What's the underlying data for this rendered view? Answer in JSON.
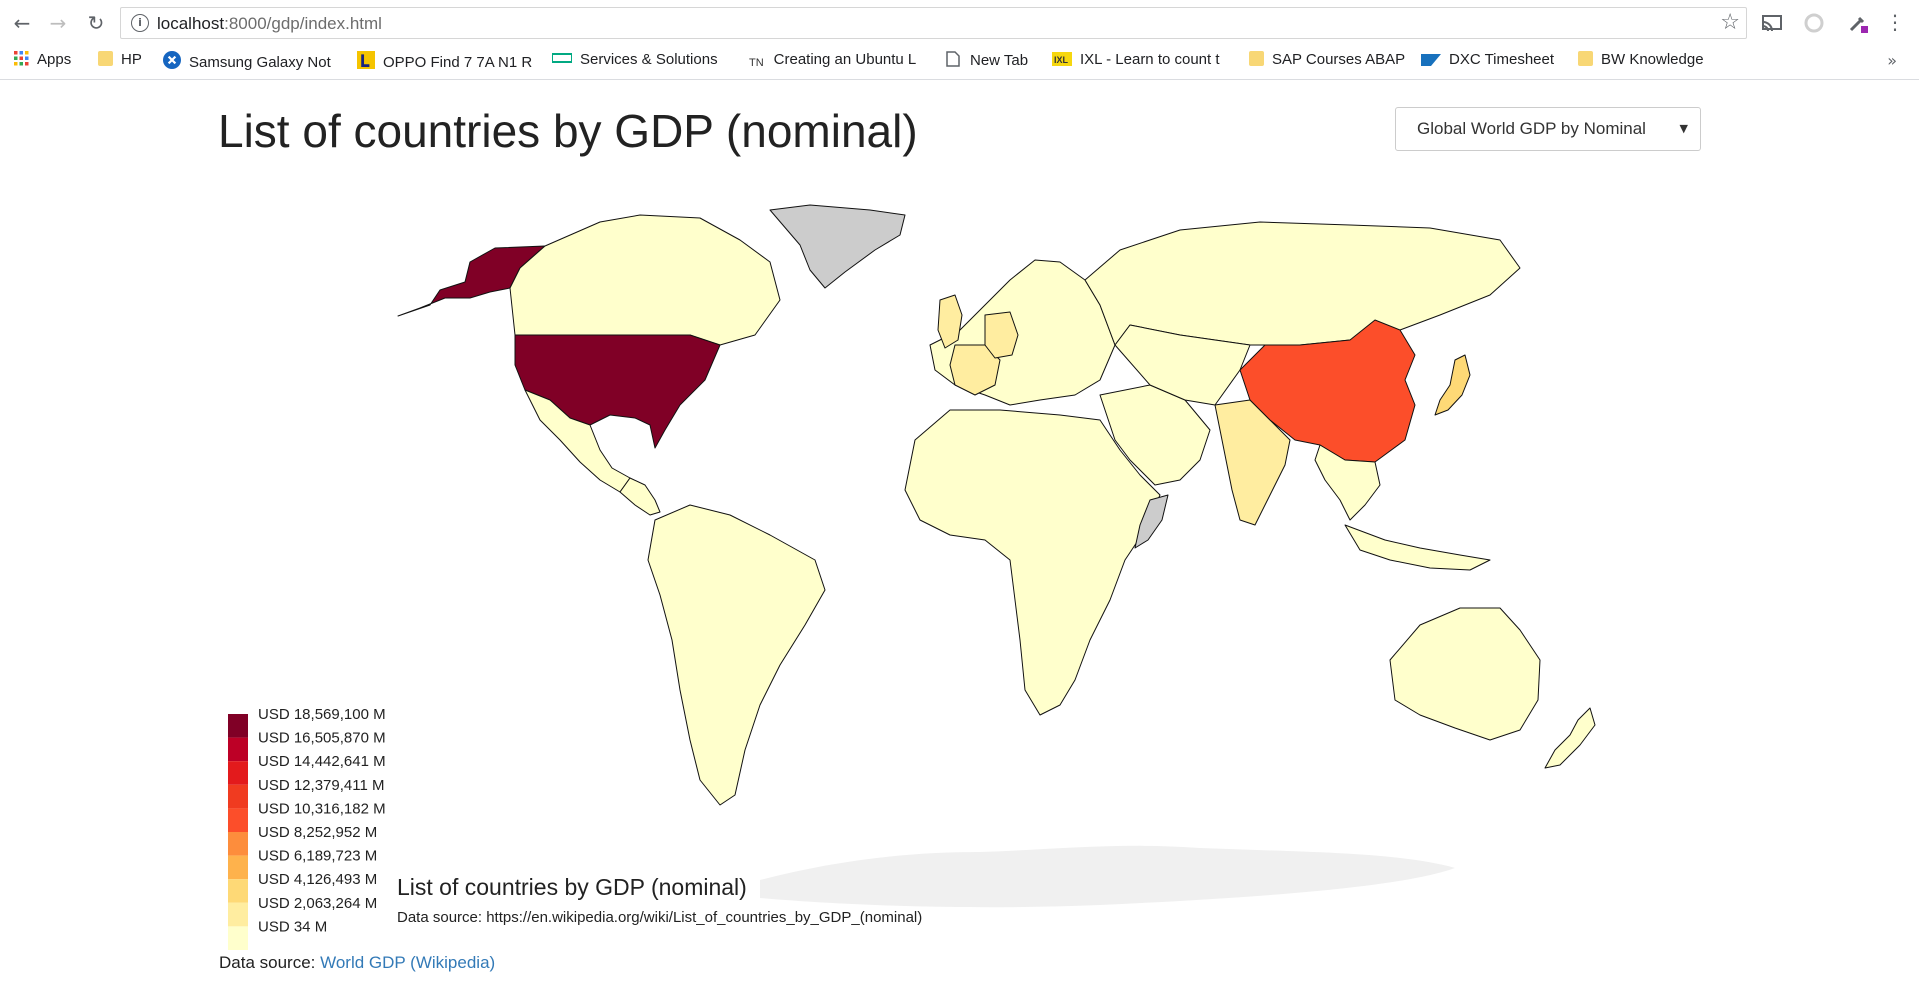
{
  "browser": {
    "url_host": "localhost",
    "url_path": ":8000/gdp/index.html",
    "bookmarks": [
      {
        "label": "Apps",
        "icon": "apps-grid-icon"
      },
      {
        "label": "HP",
        "icon": "folder-icon"
      },
      {
        "label": "Samsung Galaxy Not",
        "icon": "samsung-icon"
      },
      {
        "label": "OPPO Find 7 7A N1 R",
        "icon": "oppo-icon"
      },
      {
        "label": "Services & Solutions",
        "icon": "hpe-icon"
      },
      {
        "label": "Creating an Ubuntu L",
        "icon": "tn-icon"
      },
      {
        "label": "New Tab",
        "icon": "page-icon"
      },
      {
        "label": "IXL - Learn to count t",
        "icon": "ixl-icon"
      },
      {
        "label": "SAP Courses ABAP",
        "icon": "folder-icon"
      },
      {
        "label": "DXC Timesheet",
        "icon": "sap-icon"
      },
      {
        "label": "BW Knowledge",
        "icon": "folder-icon"
      }
    ],
    "tn_text": "TN"
  },
  "page": {
    "title": "List of countries by GDP (nominal)",
    "selector_value": "Global World GDP by Nominal",
    "footer_prefix": "Data source: ",
    "footer_link": "World GDP (Wikipedia)"
  },
  "map": {
    "subtitle": "List of countries by GDP (nominal)",
    "source": "Data source: https://en.wikipedia.org/wiki/List_of_countries_by_GDP_(nominal)",
    "colors": {
      "no_data": "#cccccc",
      "antarctica": "#f0f0f0",
      "border": "#111111"
    },
    "legend": [
      {
        "label": "USD 18,569,100 M",
        "color": "#800026"
      },
      {
        "label": "USD 16,505,870 M",
        "color": "#bd0026"
      },
      {
        "label": "USD 14,442,641 M",
        "color": "#e31a1c"
      },
      {
        "label": "USD 12,379,411 M",
        "color": "#f03b20"
      },
      {
        "label": "USD 10,316,182 M",
        "color": "#fc4e2a"
      },
      {
        "label": "USD 8,252,952 M",
        "color": "#fd8d3c"
      },
      {
        "label": "USD 6,189,723 M",
        "color": "#feb24c"
      },
      {
        "label": "USD 4,126,493 M",
        "color": "#fed976"
      },
      {
        "label": "USD 2,063,264 M",
        "color": "#ffeda0"
      },
      {
        "label": "USD 34 M",
        "color": "#ffffcc"
      }
    ],
    "regions": [
      {
        "name": "alaska",
        "gdp_bin": "USD 18,569,100 M"
      },
      {
        "name": "canada",
        "gdp_bin": "USD 34 M"
      },
      {
        "name": "greenland",
        "gdp_bin": "no data"
      },
      {
        "name": "united-states",
        "gdp_bin": "USD 18,569,100 M"
      },
      {
        "name": "mexico",
        "gdp_bin": "USD 34 M"
      },
      {
        "name": "central-america",
        "gdp_bin": "USD 34 M"
      },
      {
        "name": "south-america",
        "gdp_bin": "USD 34 M"
      },
      {
        "name": "europe",
        "gdp_bin": "USD 34 M"
      },
      {
        "name": "united-kingdom",
        "gdp_bin": "USD 2,063,264 M"
      },
      {
        "name": "france",
        "gdp_bin": "USD 2,063,264 M"
      },
      {
        "name": "germany",
        "gdp_bin": "USD 2,063,264 M"
      },
      {
        "name": "russia",
        "gdp_bin": "USD 34 M"
      },
      {
        "name": "africa",
        "gdp_bin": "USD 34 M"
      },
      {
        "name": "middle-east",
        "gdp_bin": "USD 34 M"
      },
      {
        "name": "central-asia",
        "gdp_bin": "USD 34 M"
      },
      {
        "name": "india",
        "gdp_bin": "USD 2,063,264 M"
      },
      {
        "name": "china",
        "gdp_bin": "USD 10,316,182 M"
      },
      {
        "name": "japan",
        "gdp_bin": "USD 4,126,493 M"
      },
      {
        "name": "southeast-asia",
        "gdp_bin": "USD 34 M"
      },
      {
        "name": "indonesia",
        "gdp_bin": "USD 34 M"
      },
      {
        "name": "australia",
        "gdp_bin": "USD 34 M"
      },
      {
        "name": "new-zealand",
        "gdp_bin": "USD 34 M"
      },
      {
        "name": "somalia",
        "gdp_bin": "no data"
      },
      {
        "name": "antarctica",
        "gdp_bin": "no data"
      }
    ]
  }
}
